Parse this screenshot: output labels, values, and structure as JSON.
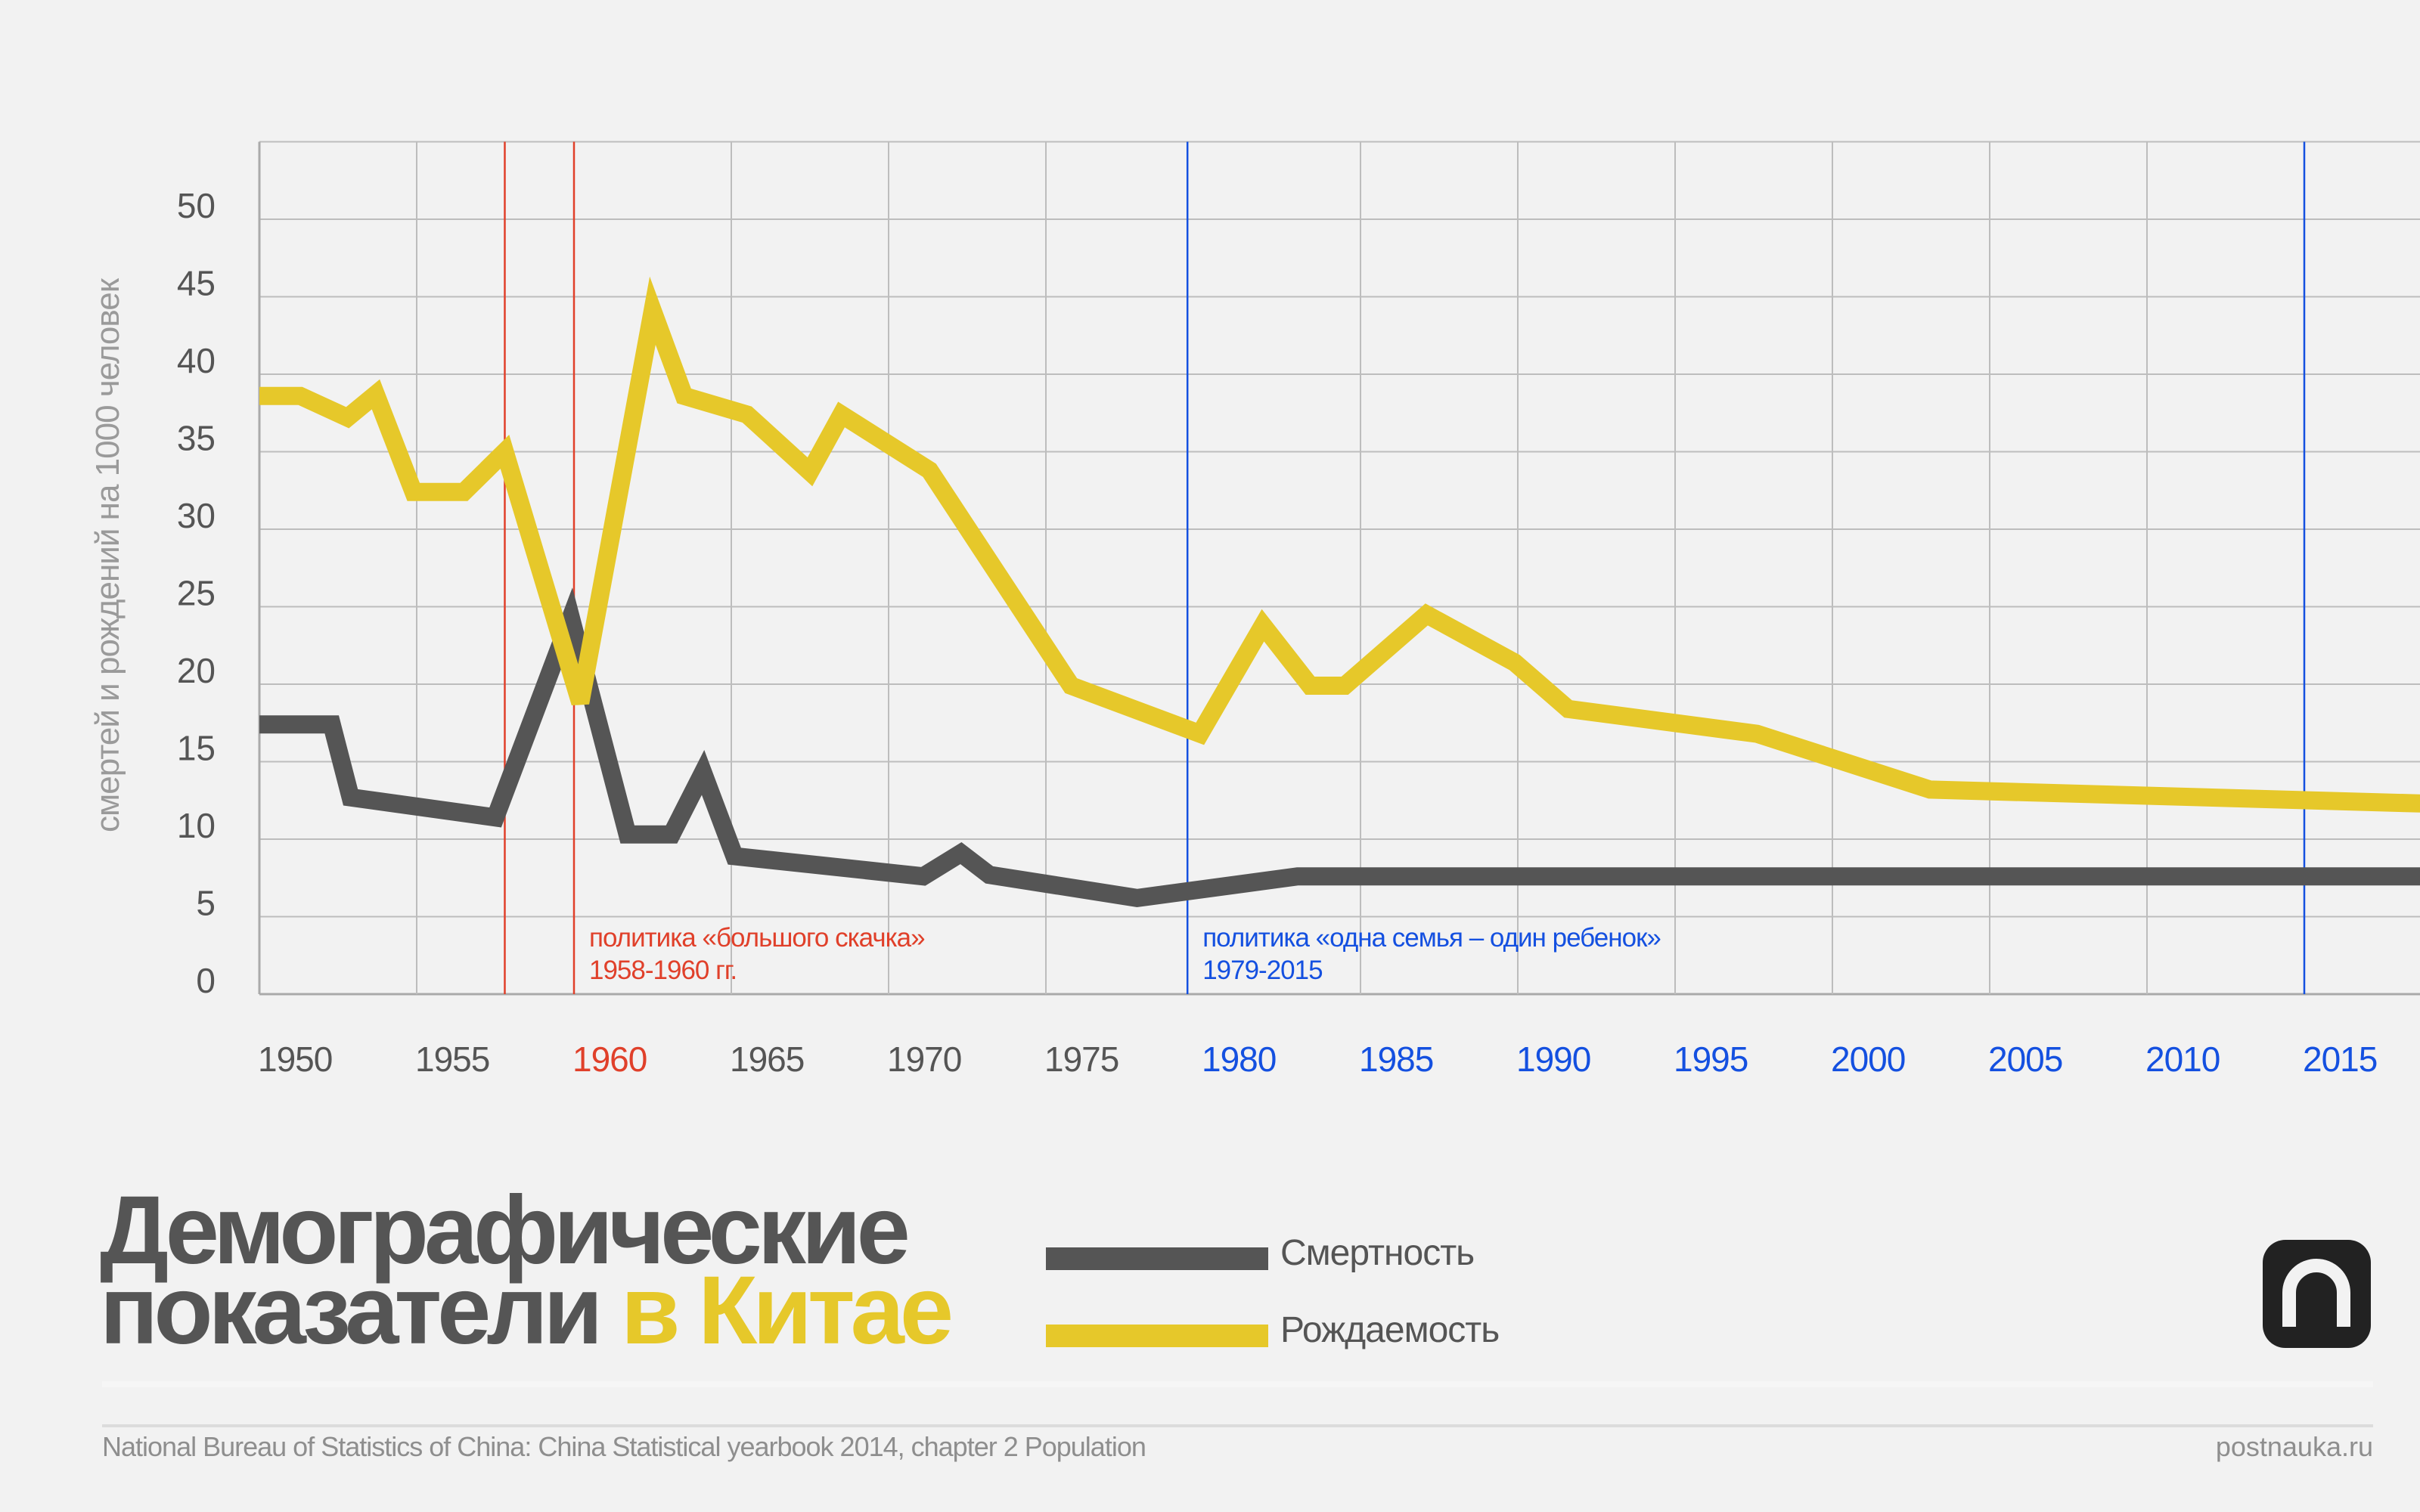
{
  "colors": {
    "background": "#F2F2F2",
    "birth": "#E6C82A",
    "death": "#555555",
    "grid": "#BDBDBD",
    "great_leap": "#E0402A",
    "one_child": "#1450E0"
  },
  "chart_data": {
    "type": "line",
    "ylabel": "смертей и рождений на 1000 человек",
    "xlabel": "",
    "xlim": [
      1950,
      2018.7
    ],
    "ylim": [
      0,
      55
    ],
    "grid": true,
    "x_ticks": [
      "1950",
      "1955",
      "1960",
      "1965",
      "1970",
      "1975",
      "1980",
      "1985",
      "1990",
      "1995",
      "2000",
      "2005",
      "2010",
      "2015"
    ],
    "y_ticks": [
      "0",
      "5",
      "10",
      "15",
      "20",
      "25",
      "30",
      "35",
      "40",
      "45",
      "50"
    ],
    "legend_position": "bottom",
    "series": [
      {
        "name": "Смертность",
        "color": "#555555",
        "points": [
          [
            1950,
            17.4
          ],
          [
            1952.3,
            17.4
          ],
          [
            1952.9,
            12.7
          ],
          [
            1957.5,
            11.4
          ],
          [
            1959.9,
            24.3
          ],
          [
            1961.7,
            10.3
          ],
          [
            1963.1,
            10.3
          ],
          [
            1964.1,
            14.3
          ],
          [
            1965.1,
            8.9
          ],
          [
            1971.1,
            7.6
          ],
          [
            1972.3,
            9.1
          ],
          [
            1973.2,
            7.7
          ],
          [
            1977.9,
            6.2
          ],
          [
            1983.0,
            7.6
          ],
          [
            2018.7,
            7.6
          ]
        ]
      },
      {
        "name": "Рождаемость",
        "color": "#E6C82A",
        "points": [
          [
            1950,
            38.6
          ],
          [
            1951.3,
            38.6
          ],
          [
            1952.8,
            37.2
          ],
          [
            1953.7,
            38.7
          ],
          [
            1954.9,
            32.4
          ],
          [
            1956.5,
            32.4
          ],
          [
            1957.8,
            35.0
          ],
          [
            1960.2,
            18.8
          ],
          [
            1962.5,
            44.1
          ],
          [
            1963.5,
            38.6
          ],
          [
            1965.5,
            37.4
          ],
          [
            1967.5,
            33.7
          ],
          [
            1968.5,
            37.4
          ],
          [
            1971.3,
            33.8
          ],
          [
            1975.8,
            19.9
          ],
          [
            1979.9,
            16.8
          ],
          [
            1981.9,
            23.8
          ],
          [
            1983.4,
            19.9
          ],
          [
            1984.5,
            19.9
          ],
          [
            1987.1,
            24.5
          ],
          [
            1989.9,
            21.4
          ],
          [
            1991.6,
            18.4
          ],
          [
            1997.6,
            16.8
          ],
          [
            2003.1,
            13.2
          ],
          [
            2018.7,
            12.3
          ]
        ]
      }
    ],
    "annotations": [
      {
        "name": "great-leap",
        "lines_at": [
          1957.8,
          1960
        ],
        "color": "#E0402A",
        "text": "политика «большого скачка»",
        "period": "1958-1960 гг."
      },
      {
        "name": "one-child",
        "lines_at": [
          1979.5,
          2015
        ],
        "color": "#1450E0",
        "text": "политика «одна семья – один ребенок»",
        "period": "1979-2015"
      }
    ],
    "x_tick_colors": {
      "1960": "#E0402A",
      "1980": "#1450E0",
      "1985": "#1450E0",
      "1990": "#1450E0",
      "1995": "#1450E0",
      "2000": "#1450E0",
      "2005": "#1450E0",
      "2010": "#1450E0",
      "2015": "#1450E0"
    }
  },
  "title": {
    "line1": "Демографические",
    "line2_main": "показатели",
    "line2_accent": "в Китае"
  },
  "legend": {
    "death": "Смертность",
    "birth": "Рождаемость"
  },
  "footer": {
    "source": "National Bureau of Statistics of China: China Statistical yearbook 2014, chapter 2 Population",
    "site": "postnauka.ru"
  },
  "logo": {
    "icon": "postnauka-logo"
  }
}
